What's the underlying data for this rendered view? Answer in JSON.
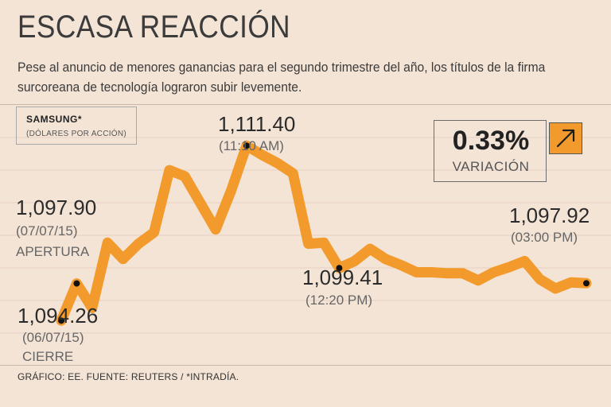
{
  "title": "ESCASA REACCIÓN",
  "subtitle": "Pese al anuncio de menores ganancias para el segundo trimestre del año, los títulos de la firma surcoreana de tecnología lograron subir levemente.",
  "legend": {
    "brand": "SAMSUNG*",
    "unit": "(DÓLARES POR ACCIÓN)"
  },
  "variation": {
    "value": "0.33%",
    "label": "VARIACIÓN",
    "direction": "up"
  },
  "source": "GRÁFICO: EE. FUENTE: REUTERS / *INTRADÍA.",
  "colors": {
    "background": "#f4e4d6",
    "line": "#f39a2c",
    "grid": "#e6d1c2",
    "text": "#3b3b3b"
  },
  "chart_data": {
    "type": "line",
    "title": "ESCASA REACCIÓN",
    "ylabel": "Dólares por acción",
    "ylim": [
      1090.0,
      1115.4
    ],
    "grid": true,
    "series": [
      {
        "name": "Samsung",
        "values": [
          1094.26,
          1097.9,
          1095.5,
          1101.9,
          1100.3,
          1101.8,
          1102.9,
          1109.0,
          1108.4,
          1105.8,
          1103.2,
          1107.0,
          1111.4,
          1110.5,
          1109.7,
          1108.7,
          1101.8,
          1101.9,
          1099.41,
          1100.1,
          1101.3,
          1100.3,
          1099.7,
          1099.0,
          1099.0,
          1098.9,
          1098.9,
          1098.2,
          1099.0,
          1099.5,
          1100.1,
          1098.3,
          1097.4,
          1098.0,
          1097.92
        ]
      }
    ],
    "annotations": [
      {
        "index": 0,
        "value": "1,094.26",
        "date": "(06/07/15)",
        "label": "CIERRE"
      },
      {
        "index": 1,
        "value": "1,097.90",
        "date": "(07/07/15)",
        "label": "APERTURA"
      },
      {
        "index": 12,
        "value": "1,111.40",
        "date": "(11:10 AM)",
        "label": ""
      },
      {
        "index": 18,
        "value": "1,099.41",
        "date": "(12:20 PM)",
        "label": ""
      },
      {
        "index": 34,
        "value": "1,097.92",
        "date": "(03:00 PM)",
        "label": ""
      }
    ]
  }
}
